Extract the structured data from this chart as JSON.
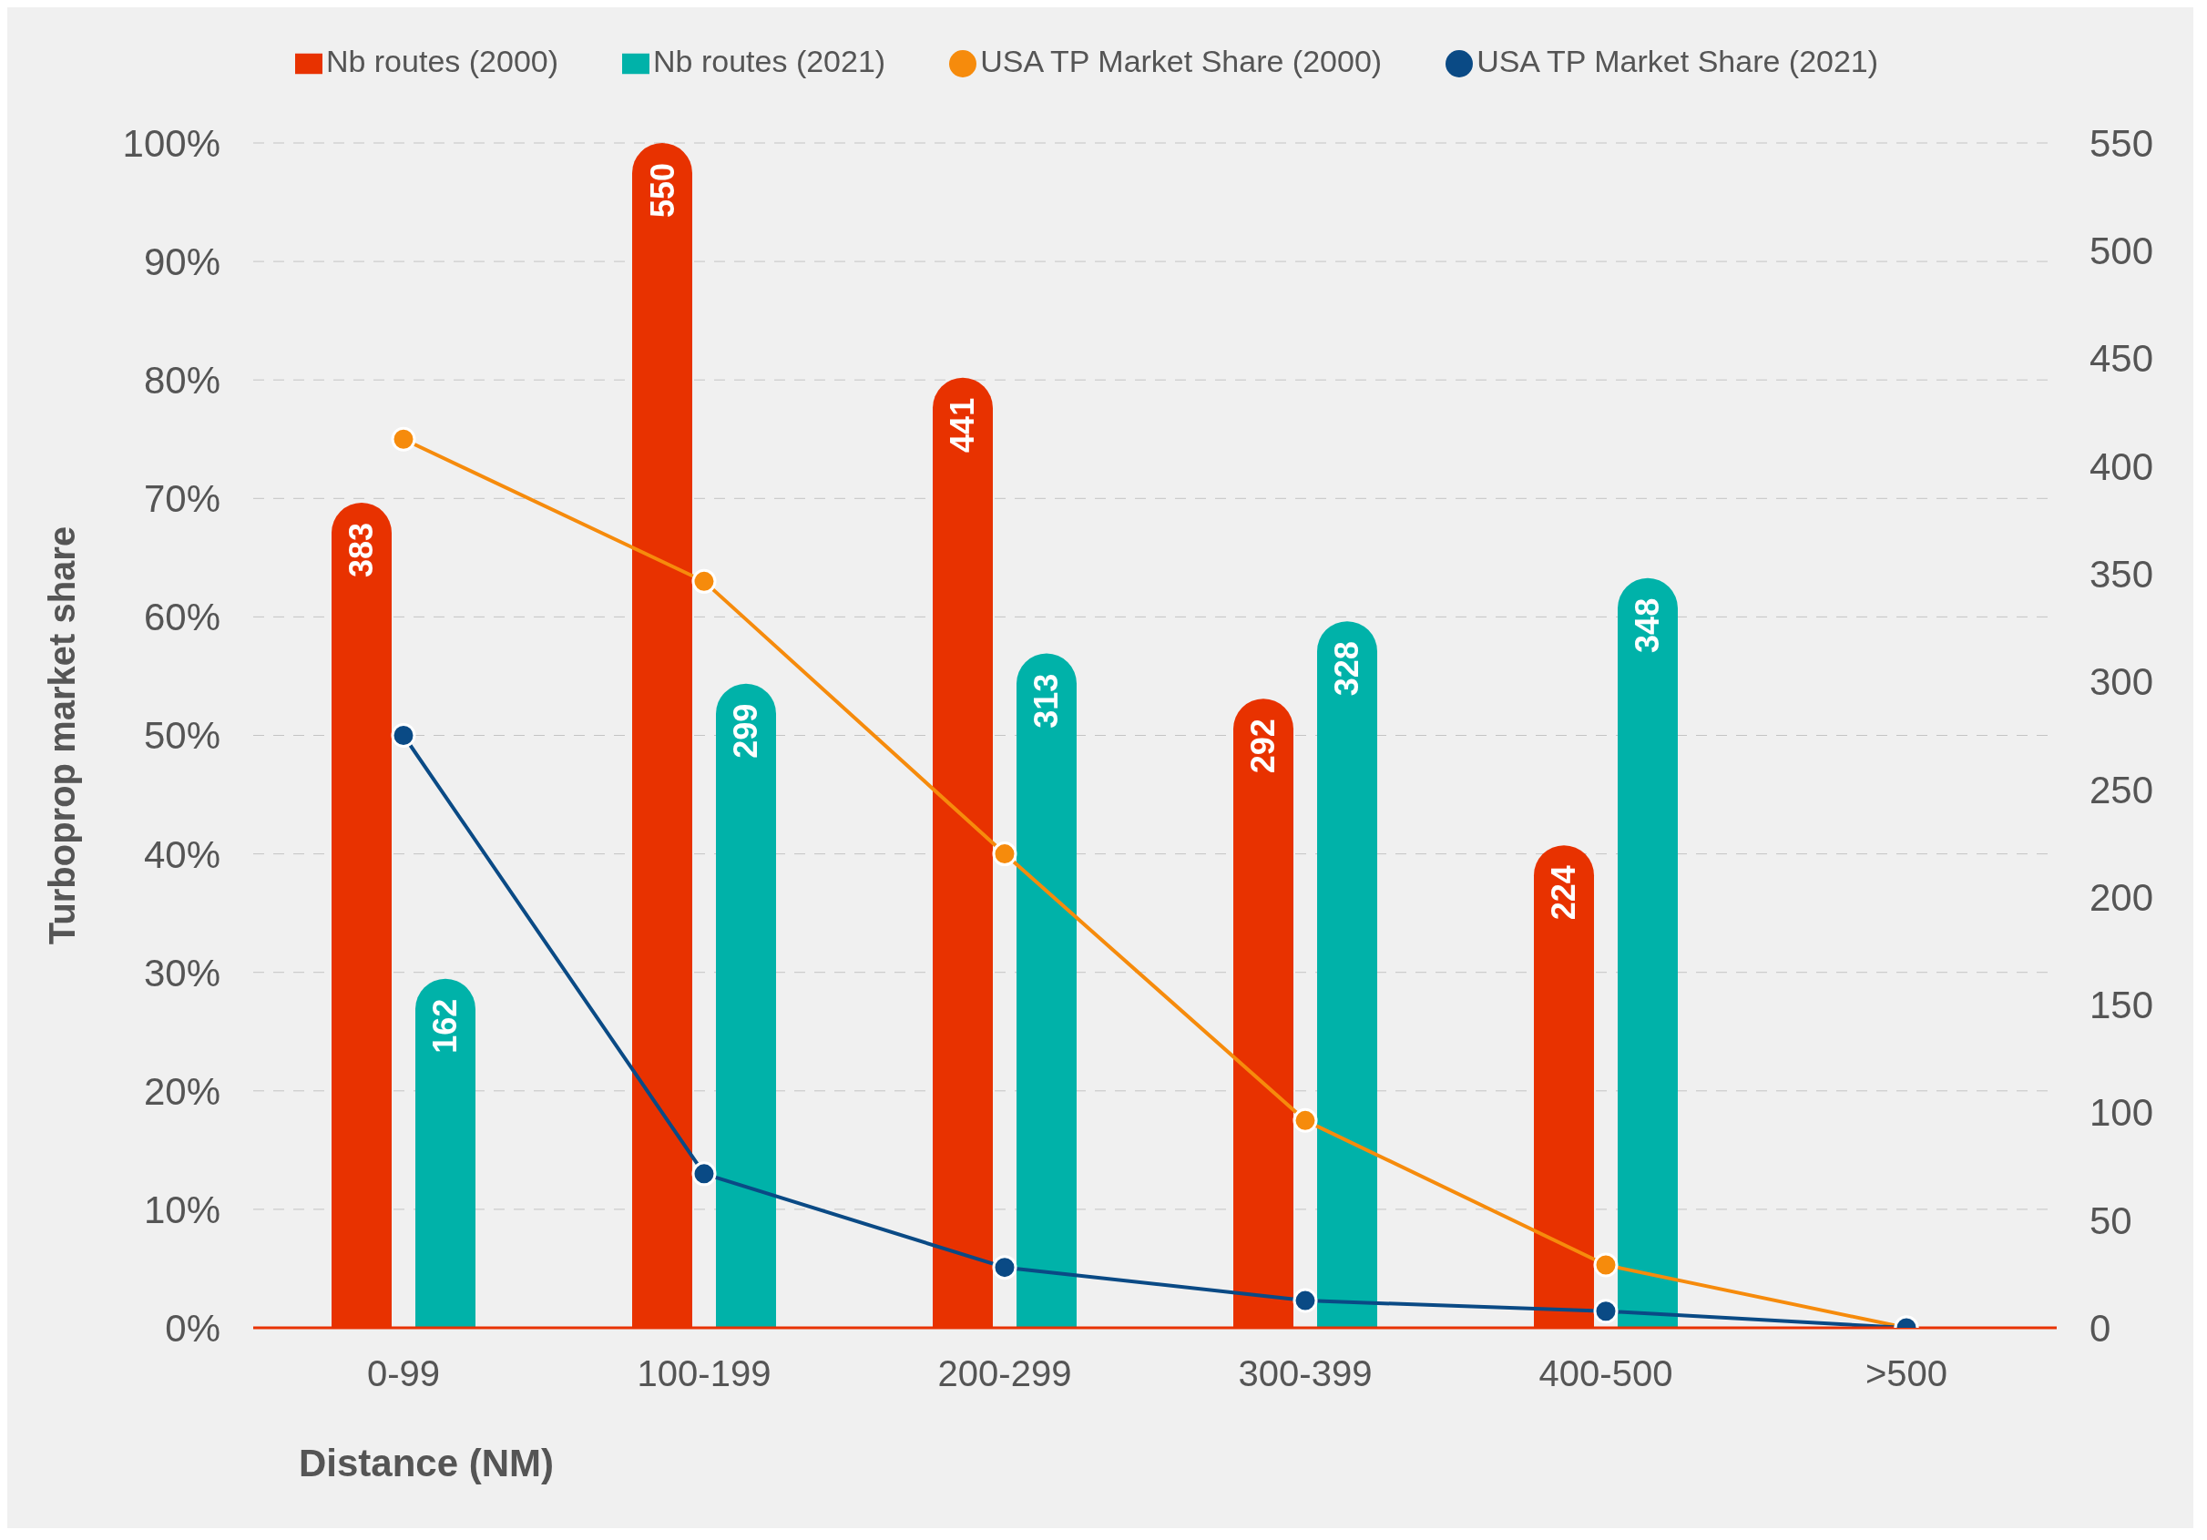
{
  "chart_data": {
    "type": "bar",
    "categories": [
      "0-99",
      "100-199",
      "200-299",
      "300-399",
      "400-500",
      ">500"
    ],
    "xlabel": "Distance (NM)",
    "ylabel": "Turboprop market share",
    "series": [
      {
        "name": "Nb routes (2000)",
        "axis": "y2",
        "color": "#e83200",
        "values": [
          383,
          550,
          441,
          292,
          224,
          null
        ],
        "value_labels": [
          "383",
          "550",
          "441",
          "292",
          "224",
          null
        ]
      },
      {
        "name": "Nb routes (2021)",
        "axis": "y2",
        "color": "#00b2a9",
        "values": [
          162,
          299,
          313,
          328,
          348,
          null
        ],
        "value_labels": [
          "162",
          "299",
          "313",
          "328",
          "348",
          null
        ]
      },
      {
        "name": "USA TP Market Share (2000)",
        "type": "line",
        "color": "#f68b0c",
        "values": [
          75,
          63,
          40,
          17.5,
          5.3,
          0
        ]
      },
      {
        "name": "USA TP Market Share (2021)",
        "type": "line",
        "color": "#0a4a85",
        "values": [
          50,
          13,
          5.1,
          2.3,
          1.4,
          0
        ]
      }
    ],
    "ylim": [
      0,
      100
    ],
    "yticks": [
      {
        "value": 0,
        "label": "0%"
      },
      {
        "value": 10,
        "label": "10%"
      },
      {
        "value": 20,
        "label": "20%"
      },
      {
        "value": 30,
        "label": "30%"
      },
      {
        "value": 40,
        "label": "40%"
      },
      {
        "value": 50,
        "label": "50%"
      },
      {
        "value": 60,
        "label": "60%"
      },
      {
        "value": 70,
        "label": "70%"
      },
      {
        "value": 80,
        "label": "80%"
      },
      {
        "value": 90,
        "label": "90%"
      },
      {
        "value": 100,
        "label": "100%"
      }
    ],
    "y2lim": [
      0,
      550
    ],
    "y2ticks": [
      0,
      50,
      100,
      150,
      200,
      250,
      300,
      350,
      400,
      450,
      500,
      550
    ],
    "grid": "y",
    "legend": "top",
    "marker": "circle",
    "line_style": "solid"
  }
}
